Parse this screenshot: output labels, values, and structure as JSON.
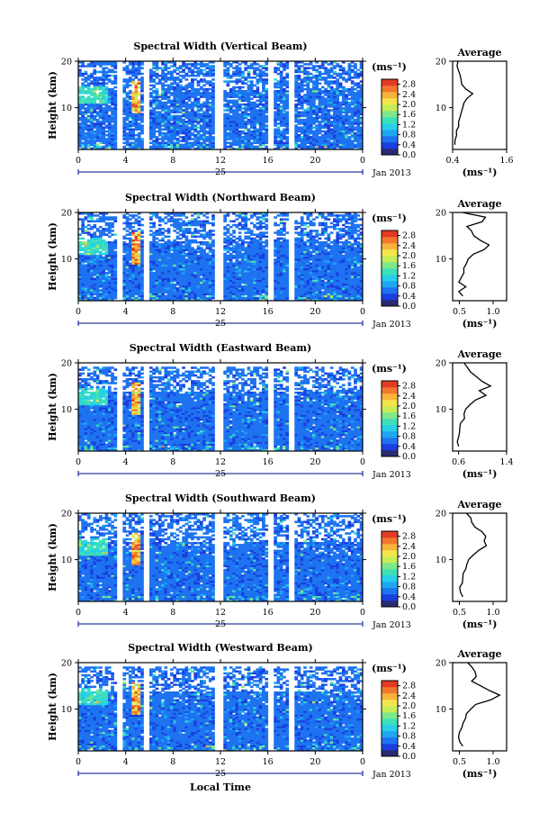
{
  "figure": {
    "date_label": "Jan 2013",
    "day_label": "25",
    "x_title": "Local Time",
    "y_title": "Height (km)",
    "unit": "(ms⁻¹)",
    "avg_title": "Average",
    "colorbar_ticks": [
      "0.0",
      "0.4",
      "0.8",
      "1.2",
      "1.6",
      "2.0",
      "2.4",
      "2.8"
    ],
    "colorbar_colors": [
      "#2a2a70",
      "#1a3fe0",
      "#1e73f0",
      "#1ea6f3",
      "#27cfe8",
      "#3ee0b8",
      "#7ee88a",
      "#c6ec58",
      "#f4e64a",
      "#f8b43a",
      "#f2782e",
      "#e33a26"
    ],
    "x_ticks": [
      "0",
      "4",
      "8",
      "12",
      "16",
      "20",
      "0"
    ],
    "y_ticks": [
      "10",
      "20"
    ]
  },
  "chart_data": [
    {
      "type": "heatmap",
      "title": "Spectral Width (Vertical Beam)",
      "xlabel": "Local Time",
      "ylabel": "Height (km)",
      "xlim": [
        0,
        24
      ],
      "ylim": [
        1,
        20
      ],
      "colorbar_range": [
        0.0,
        3.0
      ],
      "data_gaps_hours": [
        [
          3.3,
          3.8
        ],
        [
          5.6,
          6.1
        ],
        [
          11.6,
          12.2
        ],
        [
          16.0,
          16.5
        ],
        [
          17.8,
          18.2
        ]
      ],
      "average_profile": {
        "xlim": [
          0.4,
          1.6
        ],
        "xticks": [
          "0.4",
          "1.6"
        ],
        "heights": [
          2,
          3,
          4,
          5,
          6,
          7,
          8,
          9,
          10,
          11,
          12,
          13,
          14,
          15,
          16,
          17,
          18,
          19,
          20
        ],
        "values": [
          0.45,
          0.47,
          0.48,
          0.5,
          0.52,
          0.55,
          0.58,
          0.6,
          0.62,
          0.65,
          0.72,
          0.85,
          0.7,
          0.6,
          0.58,
          0.55,
          0.52,
          0.5,
          0.5
        ]
      }
    },
    {
      "type": "heatmap",
      "title": "Spectral Width (Northward Beam)",
      "xlabel": "Local Time",
      "ylabel": "Height (km)",
      "xlim": [
        0,
        24
      ],
      "ylim": [
        1,
        20
      ],
      "colorbar_range": [
        0.0,
        3.0
      ],
      "data_gaps_hours": [
        [
          3.3,
          3.8
        ],
        [
          5.6,
          6.1
        ],
        [
          11.6,
          12.2
        ],
        [
          16.0,
          16.5
        ],
        [
          17.8,
          18.2
        ]
      ],
      "average_profile": {
        "xlim": [
          0.4,
          1.2
        ],
        "xticks": [
          "0.5",
          "1.0"
        ],
        "heights": [
          2,
          3,
          4,
          5,
          6,
          7,
          8,
          9,
          10,
          11,
          12,
          13,
          14,
          15,
          16,
          17,
          18,
          19,
          20
        ],
        "values": [
          0.55,
          0.5,
          0.58,
          0.5,
          0.52,
          0.55,
          0.58,
          0.6,
          0.63,
          0.7,
          0.85,
          0.95,
          0.8,
          0.72,
          0.68,
          0.6,
          0.85,
          0.9,
          0.55
        ]
      }
    },
    {
      "type": "heatmap",
      "title": "Spectral Width (Eastward Beam)",
      "xlabel": "Local Time",
      "ylabel": "Height (km)",
      "xlim": [
        0,
        24
      ],
      "ylim": [
        1,
        20
      ],
      "colorbar_range": [
        0.0,
        3.0
      ],
      "data_gaps_hours": [
        [
          3.3,
          3.8
        ],
        [
          5.6,
          6.1
        ],
        [
          11.6,
          12.2
        ],
        [
          16.0,
          16.5
        ],
        [
          17.8,
          18.2
        ]
      ],
      "average_profile": {
        "xlim": [
          0.5,
          1.4
        ],
        "xticks": [
          "0.6",
          "1.4"
        ],
        "heights": [
          2,
          3,
          4,
          5,
          6,
          7,
          8,
          9,
          10,
          11,
          12,
          13,
          14,
          15,
          16,
          17,
          18,
          19,
          20
        ],
        "values": [
          0.6,
          0.58,
          0.6,
          0.62,
          0.63,
          0.65,
          0.68,
          0.7,
          0.72,
          0.78,
          0.9,
          1.05,
          0.95,
          1.15,
          1.0,
          0.9,
          0.8,
          0.75,
          0.7
        ]
      }
    },
    {
      "type": "heatmap",
      "title": "Spectral Width (Southward Beam)",
      "xlabel": "Local Time",
      "ylabel": "Height (km)",
      "xlim": [
        0,
        24
      ],
      "ylim": [
        1,
        20
      ],
      "colorbar_range": [
        0.0,
        3.0
      ],
      "data_gaps_hours": [
        [
          3.3,
          3.8
        ],
        [
          5.6,
          6.1
        ],
        [
          11.6,
          12.2
        ],
        [
          16.0,
          16.5
        ],
        [
          17.8,
          18.2
        ]
      ],
      "average_profile": {
        "xlim": [
          0.4,
          1.2
        ],
        "xticks": [
          "0.5",
          "1.0"
        ],
        "heights": [
          2,
          3,
          4,
          5,
          6,
          7,
          8,
          9,
          10,
          11,
          12,
          13,
          14,
          15,
          16,
          17,
          18,
          19,
          20
        ],
        "values": [
          0.55,
          0.5,
          0.52,
          0.53,
          0.55,
          0.57,
          0.6,
          0.62,
          0.65,
          0.7,
          0.8,
          0.9,
          0.85,
          0.9,
          0.82,
          0.75,
          0.7,
          0.65,
          0.6
        ]
      }
    },
    {
      "type": "heatmap",
      "title": "Spectral Width (Westward Beam)",
      "xlabel": "Local Time",
      "ylabel": "Height (km)",
      "xlim": [
        0,
        24
      ],
      "ylim": [
        1,
        20
      ],
      "colorbar_range": [
        0.0,
        3.0
      ],
      "data_gaps_hours": [
        [
          3.3,
          3.8
        ],
        [
          5.6,
          6.1
        ],
        [
          11.6,
          12.2
        ],
        [
          16.0,
          16.5
        ],
        [
          17.8,
          18.2
        ]
      ],
      "average_profile": {
        "xlim": [
          0.4,
          1.2
        ],
        "xticks": [
          "0.5",
          "1.0"
        ],
        "heights": [
          2,
          3,
          4,
          5,
          6,
          7,
          8,
          9,
          10,
          11,
          12,
          13,
          14,
          15,
          16,
          17,
          18,
          19,
          20
        ],
        "values": [
          0.55,
          0.52,
          0.5,
          0.52,
          0.53,
          0.55,
          0.58,
          0.6,
          0.65,
          0.75,
          0.95,
          1.1,
          0.95,
          0.8,
          0.7,
          0.75,
          0.72,
          0.68,
          0.62
        ]
      }
    }
  ]
}
